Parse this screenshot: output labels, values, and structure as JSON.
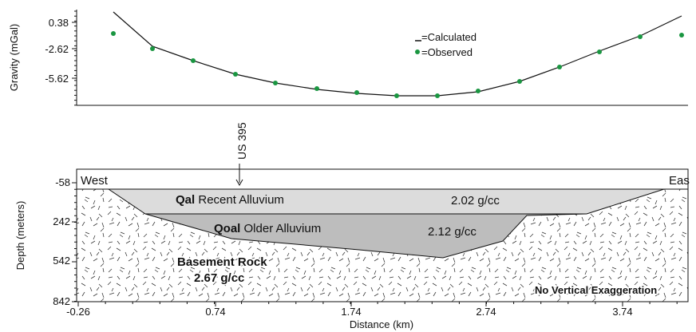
{
  "top": {
    "ylabel": "Gravity (mGal)",
    "yticks": [
      "0.38",
      "-2.62",
      "-5.62"
    ],
    "legend": {
      "calculated": "=Calculated",
      "observed": "=Observed"
    },
    "colors": {
      "observed": "#1a9641",
      "calculated": "#111111"
    }
  },
  "marker": {
    "label": "US 395"
  },
  "bottom": {
    "ylabel": "Depth (meters)",
    "yticks": [
      "-58",
      "242",
      "542",
      "842"
    ],
    "xticks": [
      "-0.26",
      "0.74",
      "1.74",
      "2.74",
      "3.74"
    ],
    "xlabel": "Distance (km)",
    "west": "West",
    "east": "Eas",
    "qal": {
      "bold": "Qal",
      "rest": " Recent Alluvium",
      "density": "2.02 g/cc",
      "color": "#dcdcdc"
    },
    "qoal": {
      "bold": "Qoal",
      "rest": " Older Alluvium",
      "density": "2.12 g/cc",
      "color": "#bdbdbd"
    },
    "basement": {
      "line1": "Basement Rock",
      "line2": "2.67 g/cc"
    },
    "note": "No Vertical Exaggeration"
  },
  "chart_data": [
    {
      "type": "line",
      "ylabel": "Gravity (mGal)",
      "y_ticks": [
        0.38,
        -2.62,
        -5.62
      ],
      "series": [
        {
          "name": "Calculated",
          "x": [
            0.24,
            0.74,
            1.24,
            1.74,
            2.24,
            2.74,
            3.24,
            3.74
          ],
          "y": [
            1.8,
            -3.8,
            -5.9,
            -7.4,
            -7.6,
            -6.9,
            -4.3,
            -0.1
          ]
        },
        {
          "name": "Observed",
          "x": [
            0.24,
            0.74,
            1.24,
            1.74,
            2.24,
            2.74,
            3.24,
            3.74
          ],
          "y": [
            -1.0,
            -3.9,
            -5.8,
            -7.3,
            -7.5,
            -6.6,
            -4.3,
            -1.4
          ]
        }
      ]
    }
  ]
}
